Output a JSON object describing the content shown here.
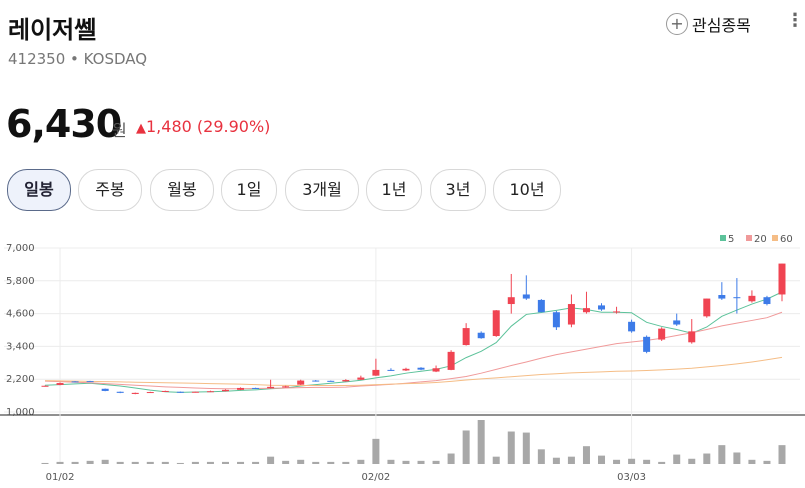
{
  "header": {
    "title": "레이저쎌",
    "code": "412350",
    "market": "KOSDAQ",
    "watch": "관심종목",
    "price": "6,430",
    "unit": "원",
    "change": "1,480 (29.90%)"
  },
  "tabs": [
    "일봉",
    "주봉",
    "월봉",
    "1일",
    "3개월",
    "1년",
    "3년",
    "10년"
  ],
  "chart_data": {
    "type": "candlestick",
    "categories": [
      null,
      "01/02",
      null,
      null,
      null,
      null,
      null,
      null,
      null,
      null,
      null,
      null,
      null,
      null,
      null,
      null,
      null,
      null,
      null,
      null,
      null,
      null,
      "02/02",
      null,
      null,
      null,
      null,
      null,
      null,
      null,
      null,
      null,
      null,
      null,
      null,
      null,
      null,
      null,
      null,
      "03/03",
      null,
      null,
      null,
      null,
      null,
      null,
      null,
      null,
      null,
      null
    ],
    "open": [
      1950,
      1990,
      2120,
      2130,
      1850,
      1740,
      1660,
      1710,
      1750,
      1740,
      1720,
      1740,
      1760,
      1810,
      1880,
      1870,
      1900,
      2000,
      2150,
      2140,
      2120,
      2180,
      2330,
      2540,
      2520,
      2620,
      2480,
      2540,
      3450,
      3900,
      3780,
      4950,
      5300,
      5100,
      4650,
      4200,
      4650,
      4900,
      4650,
      4300,
      3750,
      3650,
      4350,
      3550,
      4500,
      5280,
      5200,
      5050,
      5200,
      5300
    ],
    "high": [
      1970,
      2080,
      2130,
      2140,
      1860,
      1750,
      1710,
      1740,
      1780,
      1750,
      1750,
      1780,
      1830,
      1900,
      1890,
      2180,
      1960,
      2180,
      2170,
      2150,
      2200,
      2330,
      2950,
      2600,
      2620,
      2640,
      2700,
      3260,
      4250,
      3950,
      4730,
      6050,
      6000,
      5130,
      4700,
      5300,
      5400,
      4980,
      4850,
      4380,
      3800,
      4100,
      4600,
      4400,
      5150,
      5750,
      5900,
      5450,
      5250,
      6430
    ],
    "low": [
      1930,
      1980,
      2090,
      2100,
      1760,
      1690,
      1650,
      1700,
      1740,
      1700,
      1710,
      1730,
      1750,
      1800,
      1840,
      1860,
      1890,
      1990,
      2110,
      2110,
      2110,
      2170,
      2320,
      2500,
      2500,
      2530,
      2460,
      2530,
      3430,
      3680,
      3750,
      4600,
      5100,
      4650,
      4000,
      4100,
      4600,
      4700,
      4600,
      3900,
      3150,
      3600,
      4150,
      3500,
      4450,
      5100,
      4600,
      5000,
      4900,
      5050
    ],
    "close": [
      1960,
      2060,
      2100,
      2110,
      1770,
      1700,
      1700,
      1730,
      1770,
      1710,
      1740,
      1760,
      1810,
      1880,
      1860,
      1920,
      1940,
      2150,
      2130,
      2120,
      2170,
      2260,
      2540,
      2530,
      2580,
      2550,
      2600,
      3200,
      4070,
      3700,
      4720,
      5200,
      5150,
      4650,
      4100,
      4950,
      4800,
      4750,
      4680,
      3950,
      3200,
      4050,
      4200,
      3950,
      5150,
      5150,
      5170,
      5250,
      4950,
      6430
    ],
    "up_color": "#f04452",
    "down_color": "#3d7be8",
    "ylim": [
      1000,
      7000
    ],
    "yticks": [
      {
        "value": 7000,
        "label": "7,000"
      },
      {
        "value": 5800,
        "label": "5,800"
      },
      {
        "value": 4600,
        "label": "4,600"
      },
      {
        "value": 3400,
        "label": "3,400"
      },
      {
        "value": 2200,
        "label": "2,200"
      },
      {
        "value": 1000,
        "label": "1,000"
      }
    ],
    "grid": true,
    "moving_averages": [
      {
        "name": "5",
        "color": "#5cc29a",
        "values": [
          1980,
          2000,
          2030,
          2050,
          2000,
          1950,
          1880,
          1800,
          1740,
          1720,
          1730,
          1740,
          1760,
          1790,
          1810,
          1850,
          1880,
          1950,
          2000,
          2050,
          2100,
          2160,
          2250,
          2320,
          2420,
          2490,
          2560,
          2690,
          2990,
          3220,
          3540,
          4140,
          4570,
          4640,
          4720,
          4810,
          4750,
          4650,
          4650,
          4630,
          4280,
          4130,
          4020,
          3880,
          4110,
          4500,
          4730,
          4950,
          5130,
          5390
        ]
      },
      {
        "name": "20",
        "color": "#f09a9a",
        "values": [
          2130,
          2110,
          2090,
          2070,
          2040,
          2010,
          1980,
          1950,
          1920,
          1900,
          1880,
          1860,
          1850,
          1850,
          1860,
          1870,
          1880,
          1890,
          1900,
          1900,
          1910,
          1950,
          1980,
          2010,
          2050,
          2100,
          2150,
          2220,
          2300,
          2420,
          2560,
          2700,
          2830,
          2970,
          3100,
          3200,
          3300,
          3400,
          3500,
          3560,
          3620,
          3700,
          3800,
          3900,
          4020,
          4150,
          4250,
          4350,
          4450,
          4650
        ]
      },
      {
        "name": "60",
        "color": "#f5bd86",
        "values": [
          2150,
          2140,
          2130,
          2120,
          2110,
          2100,
          2090,
          2080,
          2070,
          2060,
          2050,
          2040,
          2030,
          2020,
          2000,
          1980,
          1975,
          1970,
          1970,
          1970,
          1970,
          1980,
          2000,
          2020,
          2040,
          2050,
          2080,
          2120,
          2170,
          2210,
          2250,
          2290,
          2330,
          2370,
          2400,
          2430,
          2450,
          2470,
          2490,
          2500,
          2520,
          2540,
          2570,
          2600,
          2650,
          2700,
          2760,
          2830,
          2910,
          3000
        ]
      }
    ],
    "volume": {
      "color": "#a8a8a8",
      "values": [
        1,
        2,
        2,
        3,
        4,
        2,
        2,
        2,
        2,
        1,
        2,
        2,
        2,
        2,
        2,
        7,
        3,
        4,
        2,
        2,
        2,
        4,
        24,
        4,
        3,
        3,
        3,
        10,
        32,
        42,
        7,
        31,
        30,
        14,
        6,
        7,
        17,
        8,
        4,
        5,
        4,
        2,
        9,
        5,
        10,
        18,
        11,
        4,
        3,
        18
      ]
    }
  }
}
